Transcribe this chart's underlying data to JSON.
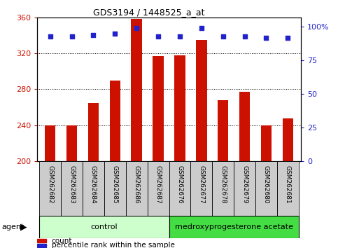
{
  "title": "GDS3194 / 1448525_a_at",
  "categories": [
    "GSM262682",
    "GSM262683",
    "GSM262684",
    "GSM262685",
    "GSM262686",
    "GSM262687",
    "GSM262676",
    "GSM262677",
    "GSM262678",
    "GSM262679",
    "GSM262680",
    "GSM262681"
  ],
  "bar_values": [
    240,
    240,
    265,
    290,
    358,
    317,
    318,
    335,
    268,
    277,
    240,
    248
  ],
  "bar_bottom": 200,
  "percentile_values": [
    93,
    93,
    94,
    95,
    99,
    93,
    93,
    99,
    93,
    93,
    92,
    92
  ],
  "bar_color": "#cc1100",
  "dot_color": "#2222cc",
  "ylim": [
    200,
    360
  ],
  "y_ticks": [
    200,
    240,
    280,
    320,
    360
  ],
  "right_yticks": [
    0,
    25,
    50,
    75,
    100
  ],
  "right_ytick_labels": [
    "0",
    "25",
    "50",
    "75",
    "100%"
  ],
  "grid_values": [
    240,
    280,
    320
  ],
  "plot_bg_color": "#ffffff",
  "xtick_bg_color": "#cccccc",
  "group1_label": "control",
  "group2_label": "medroxyprogesterone acetate",
  "group1_color": "#ccffcc",
  "group2_color": "#44dd44",
  "agent_label": "agent",
  "legend_count_label": "count",
  "legend_pct_label": "percentile rank within the sample",
  "left_color": "#cc1100",
  "right_color": "#2222cc",
  "bar_width": 0.5,
  "n_control": 6,
  "n_treatment": 6
}
